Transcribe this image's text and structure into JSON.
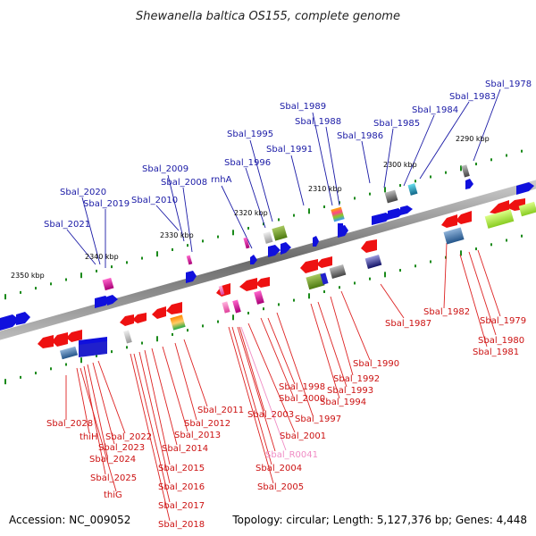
{
  "title": "Shewanella baltica OS155, complete genome",
  "accession": "Accession: NC_009052",
  "summary": "Topology: circular; Length: 5,127,376 bp; Genes: 4,448",
  "colors": {
    "forward_gene": "#1010dd",
    "reverse_gene": "#ee1111",
    "rna_gene": "#f08cc4",
    "axis": "#777777",
    "tick": "#1a8a1a",
    "top_leader": "#1a1aa6",
    "bottom_leader": "#dd2222"
  },
  "ticks": [
    "2290 kbp",
    "2300 kbp",
    "2310 kbp",
    "2320 kbp",
    "2330 kbp",
    "2340 kbp",
    "2350 kbp"
  ],
  "top_labels": [
    "Sbal_1978",
    "Sbal_1983",
    "Sbal_1984",
    "Sbal_1985",
    "Sbal_1986",
    "Sbal_1988",
    "Sbal_1989",
    "Sbal_1991",
    "Sbal_1995",
    "Sbal_1996",
    "rnhA",
    "Sbal_2008",
    "Sbal_2009",
    "Sbal_2010",
    "Sbal_2019",
    "Sbal_2020",
    "Sbal_2021"
  ],
  "bottom_labels": [
    "Sbal_1979",
    "Sbal_1980",
    "Sbal_1981",
    "Sbal_1982",
    "Sbal_1987",
    "Sbal_1990",
    "Sbal_1992",
    "Sbal_1993",
    "Sbal_1994",
    "Sbal_1997",
    "Sbal_1998",
    "Sbal_2000",
    "Sbal_2001",
    "Sbal_2003",
    "Sbal_R0041",
    "Sbal_2004",
    "Sbal_2005",
    "Sbal_2011",
    "Sbal_2012",
    "Sbal_2013",
    "Sbal_2014",
    "Sbal_2015",
    "Sbal_2016",
    "Sbal_2017",
    "Sbal_2018",
    "Sbal_2022",
    "Sbal_2023",
    "Sbal_2024",
    "Sbal_2025",
    "thiG",
    "thiH",
    "Sbal_2028"
  ]
}
